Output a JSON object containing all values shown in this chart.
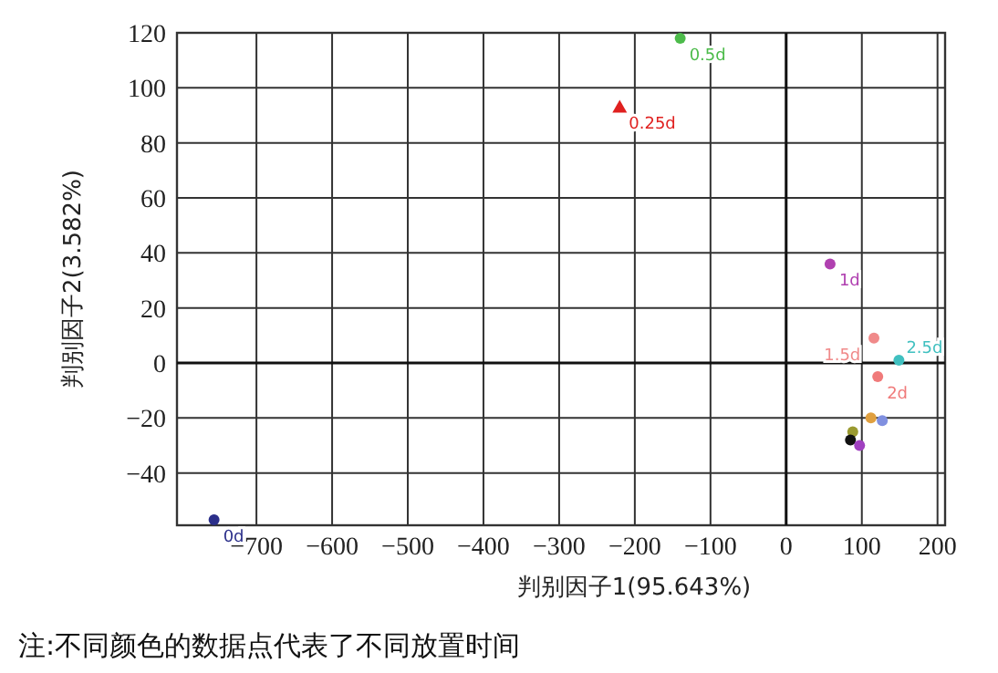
{
  "chart_data": {
    "type": "scatter",
    "xlabel": "判别因子1(95.643%)",
    "ylabel": "判别因子2(3.582%)",
    "xlim": [
      -805,
      210
    ],
    "ylim": [
      -59,
      120
    ],
    "xticks": [
      -700,
      -600,
      -500,
      -400,
      -300,
      -200,
      -100,
      0,
      100,
      200
    ],
    "yticks": [
      -40,
      -20,
      0,
      20,
      40,
      60,
      80,
      100,
      120
    ],
    "grid": true,
    "marker": "circle",
    "annotations": [
      "注:不同颜色的数据点代表了不同放置时间"
    ],
    "series": [
      {
        "name": "0d",
        "color": "#2b2f8a",
        "x": [
          -756
        ],
        "values": [
          -57
        ]
      },
      {
        "name": "0.25d",
        "color": "#e0201f",
        "marker": "triangle",
        "x": [
          -220
        ],
        "values": [
          93
        ]
      },
      {
        "name": "0.5d",
        "color": "#4cbb4a",
        "x": [
          -140
        ],
        "values": [
          118
        ]
      },
      {
        "name": "1d",
        "color": "#b040b0",
        "x": [
          58
        ],
        "values": [
          36
        ]
      },
      {
        "name": "1.5d",
        "color": "#f08a8a",
        "x": [
          116
        ],
        "values": [
          9
        ]
      },
      {
        "name": "2d",
        "color": "#f07a7a",
        "x": [
          121
        ],
        "values": [
          -5
        ]
      },
      {
        "name": "2.5d",
        "color": "#40c0c0",
        "x": [
          149
        ],
        "values": [
          1
        ]
      },
      {
        "color": "#9a9a30",
        "x": [
          88
        ],
        "values": [
          -25
        ]
      },
      {
        "color": "#111111",
        "x": [
          85
        ],
        "values": [
          -28
        ]
      },
      {
        "color": "#a040c0",
        "x": [
          97
        ],
        "values": [
          -30
        ]
      },
      {
        "color": "#8090e0",
        "x": [
          127
        ],
        "values": [
          -21
        ]
      },
      {
        "color": "#e0a040",
        "x": [
          112
        ],
        "values": [
          -20
        ]
      }
    ]
  }
}
